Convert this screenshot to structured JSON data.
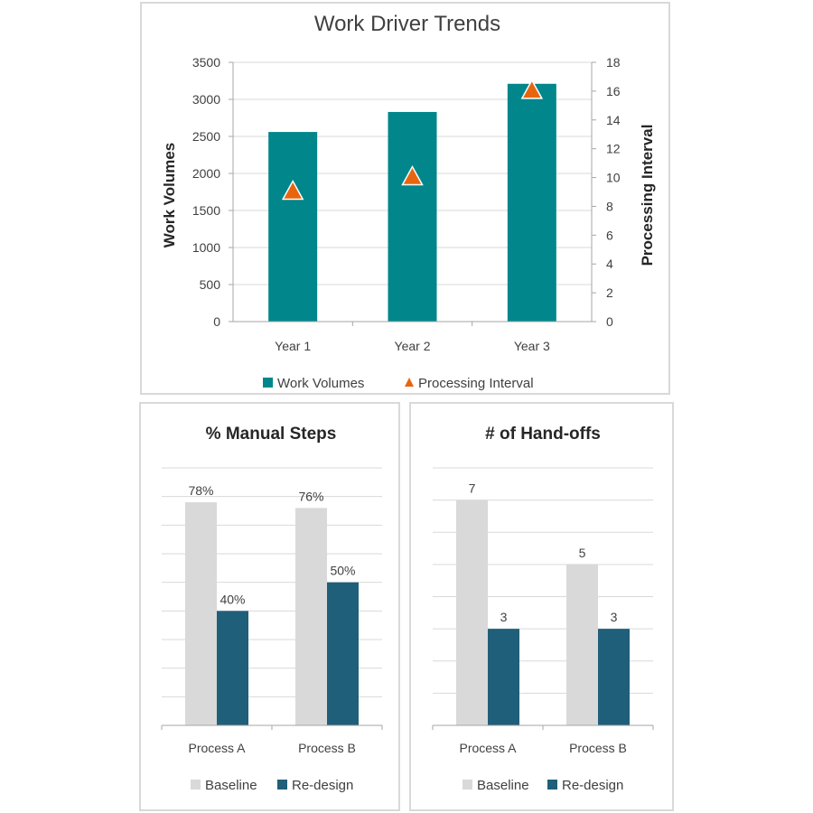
{
  "colors": {
    "teal": "#00868B",
    "orange": "#E8650F",
    "baseline": "#D9D9D9",
    "redesign": "#1F5F7A",
    "grid": "#D9D9D9",
    "axis": "#A6A6A6"
  },
  "chart_data": [
    {
      "type": "bar",
      "title": "Work Driver Trends",
      "categories": [
        "Year 1",
        "Year 2",
        "Year 3"
      ],
      "series": [
        {
          "name": "Work Volumes",
          "values": [
            2560,
            2830,
            3210
          ],
          "axis": "left",
          "kind": "bar"
        },
        {
          "name": "Processing Interval",
          "values": [
            9,
            10,
            16
          ],
          "axis": "right",
          "kind": "scatter",
          "marker": "triangle"
        }
      ],
      "ylabel": "Work Volumes",
      "y2label": "Processing Interval",
      "ylim": [
        0,
        3500
      ],
      "yticks": [
        "0",
        "500",
        "1000",
        "1500",
        "2000",
        "2500",
        "3000",
        "3500"
      ],
      "y2lim": [
        0,
        18
      ],
      "y2ticks": [
        "0",
        "2",
        "4",
        "6",
        "8",
        "10",
        "12",
        "14",
        "16",
        "18"
      ],
      "grid": true,
      "legend": "bottom"
    },
    {
      "type": "bar",
      "title": "% Manual Steps",
      "categories": [
        "Process A",
        "Process B"
      ],
      "series": [
        {
          "name": "Baseline",
          "values": [
            78,
            76
          ],
          "labels": [
            "78%",
            "76%"
          ]
        },
        {
          "name": "Re-design",
          "values": [
            40,
            50
          ],
          "labels": [
            "40%",
            "50%"
          ]
        }
      ],
      "ylim": [
        0,
        90
      ],
      "grid": true,
      "legend": "bottom"
    },
    {
      "type": "bar",
      "title": "# of Hand-offs",
      "categories": [
        "Process A",
        "Process B"
      ],
      "series": [
        {
          "name": "Baseline",
          "values": [
            7,
            5
          ],
          "labels": [
            "7",
            "5"
          ]
        },
        {
          "name": "Re-design",
          "values": [
            3,
            3
          ],
          "labels": [
            "3",
            "3"
          ]
        }
      ],
      "ylim": [
        0,
        8
      ],
      "grid": true,
      "legend": "bottom"
    }
  ]
}
